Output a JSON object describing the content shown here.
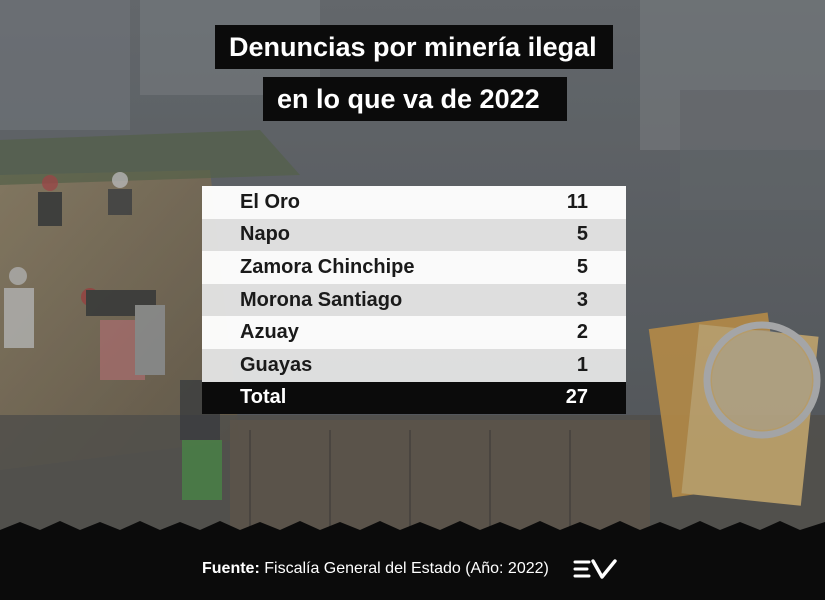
{
  "title": {
    "line1": "Denuncias por minería ilegal",
    "line2": "en lo que va de 2022"
  },
  "chart_data": {
    "type": "table",
    "rows": [
      {
        "province": "El Oro",
        "value": "11"
      },
      {
        "province": "Napo",
        "value": "5"
      },
      {
        "province": "Zamora Chinchipe",
        "value": "5"
      },
      {
        "province": "Morona Santiago",
        "value": "3"
      },
      {
        "province": "Azuay",
        "value": "2"
      },
      {
        "province": "Guayas",
        "value": "1"
      }
    ],
    "total": {
      "label": "Total",
      "value": "27"
    }
  },
  "footer": {
    "source_label": "Fuente:",
    "source_text": "Fiscalía General del Estado (Año: 2022)",
    "logo_icon": "ecuavisa-logo-icon"
  },
  "colors": {
    "title_bg": "#0b0b0b",
    "total_bg": "#0b0b0b",
    "row_light": "#ffffff",
    "row_alt": "#e2e2e2"
  }
}
